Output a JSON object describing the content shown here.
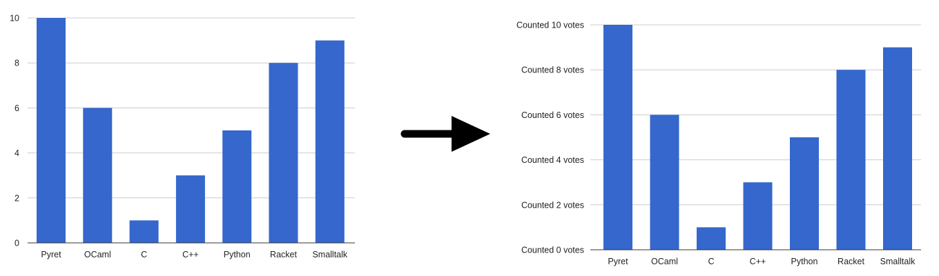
{
  "chart_data": [
    {
      "type": "bar",
      "categories": [
        "Pyret",
        "OCaml",
        "C",
        "C++",
        "Python",
        "Racket",
        "Smalltalk"
      ],
      "values": [
        10,
        6,
        1,
        3,
        5,
        8,
        9
      ],
      "ylim": [
        0,
        10
      ],
      "yticks": [
        0,
        2,
        4,
        6,
        8,
        10
      ],
      "ytick_labels": [
        "0",
        "2",
        "4",
        "6",
        "8",
        "10"
      ],
      "grid": true,
      "bar_color": "#3567cc"
    },
    {
      "type": "bar",
      "categories": [
        "Pyret",
        "OCaml",
        "C",
        "C++",
        "Python",
        "Racket",
        "Smalltalk"
      ],
      "values": [
        10,
        6,
        1,
        3,
        5,
        8,
        9
      ],
      "ylim": [
        0,
        10
      ],
      "yticks": [
        0,
        2,
        4,
        6,
        8,
        10
      ],
      "ytick_labels": [
        "Counted 0 votes",
        "Counted 2 votes",
        "Counted 4 votes",
        "Counted 6 votes",
        "Counted 8 votes",
        "Counted 10 votes"
      ],
      "grid": true,
      "bar_color": "#3567cc"
    }
  ],
  "arrow": {
    "icon": "right-arrow-icon",
    "color": "#000000"
  }
}
